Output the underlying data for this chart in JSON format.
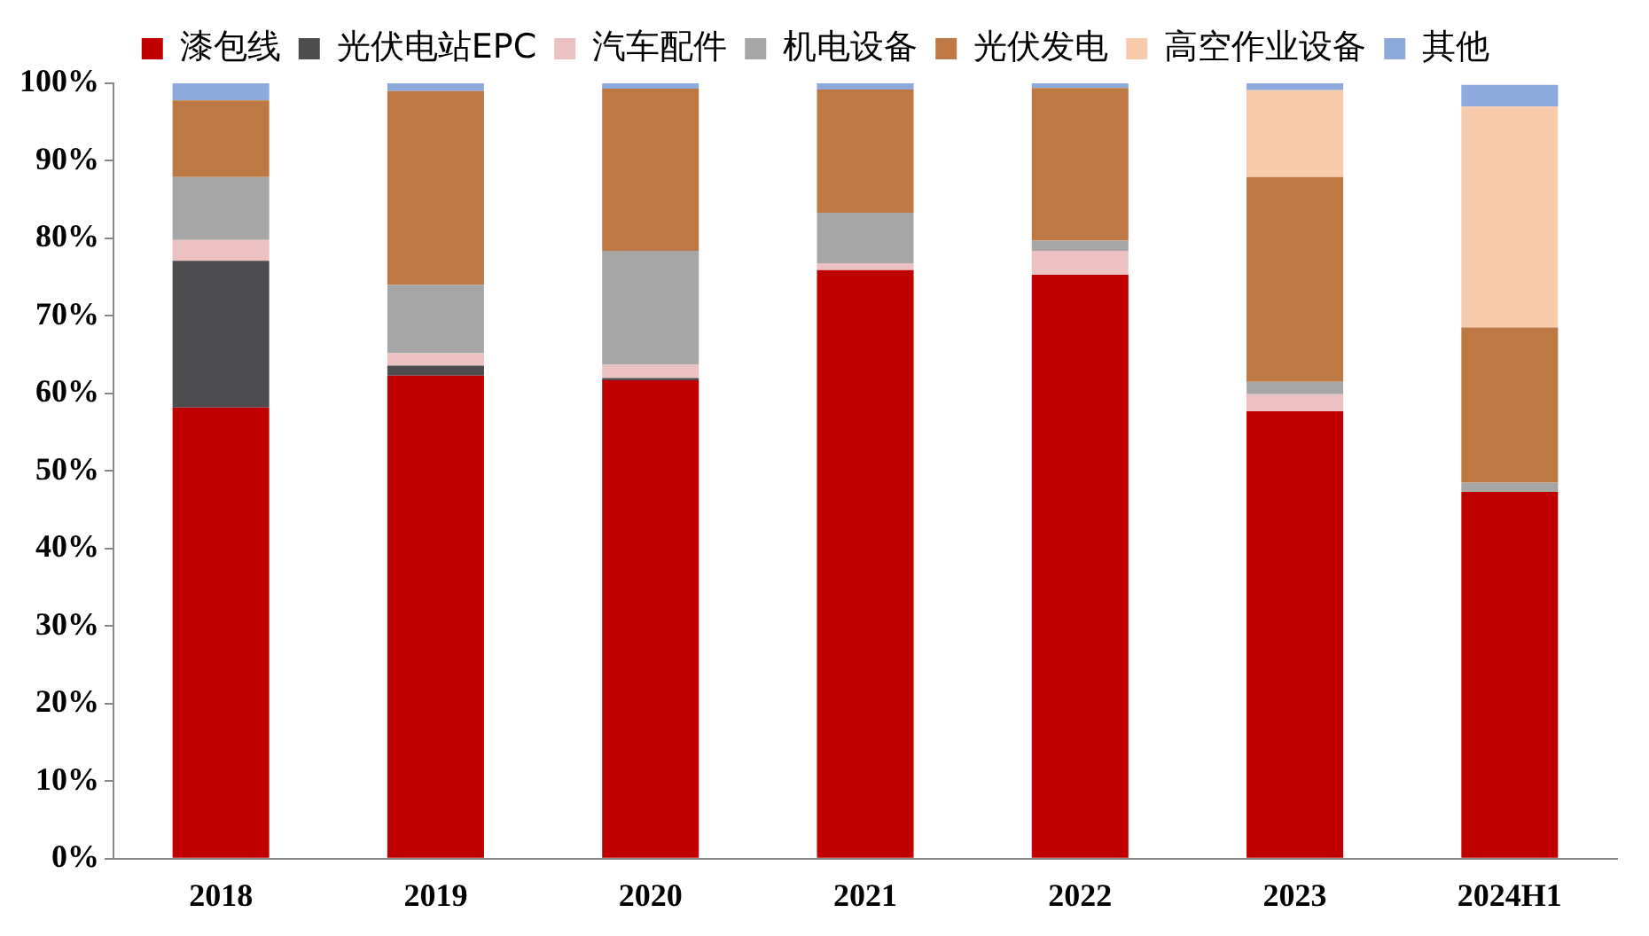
{
  "chart_data": {
    "type": "bar",
    "stacked": true,
    "legend": "top",
    "grid": false,
    "categories": [
      "2018",
      "2019",
      "2020",
      "2021",
      "2022",
      "2023",
      "2024H1"
    ],
    "series": [
      {
        "name": "漆包线",
        "color": "#c00000",
        "values": [
          58.2,
          62.3,
          61.7,
          75.9,
          75.3,
          57.7,
          47.3
        ]
      },
      {
        "name": "光伏电站EPC",
        "color": "#4d4d4f",
        "values": [
          18.9,
          1.3,
          0.3,
          0,
          0,
          0,
          0
        ]
      },
      {
        "name": "汽车配件",
        "color": "#ebc1c1",
        "values": [
          2.7,
          1.6,
          1.7,
          0.9,
          3.1,
          2.2,
          null
        ]
      },
      {
        "name": "机电设备",
        "color": "#a6a6a6",
        "values": [
          8.1,
          8.8,
          14.7,
          6.5,
          1.3,
          1.6,
          1.2
        ]
      },
      {
        "name": "光伏发电",
        "color": "#bd7843",
        "values": [
          9.9,
          25.0,
          20.9,
          15.9,
          19.7,
          26.4,
          20.0
        ]
      },
      {
        "name": "高空作业设备",
        "color": "#f8cbad",
        "values": [
          0,
          0,
          0,
          0,
          0,
          11.2,
          28.5
        ]
      },
      {
        "name": "其他",
        "color": "#8eaadc",
        "values": [
          2.2,
          1.0,
          0.8,
          0.8,
          0.6,
          0.9,
          2.8
        ]
      }
    ],
    "ylim": [
      0,
      100
    ],
    "yticks": [
      {
        "value": 0,
        "label": "0%"
      },
      {
        "value": 10,
        "label": "10%"
      },
      {
        "value": 20,
        "label": "20%"
      },
      {
        "value": 30,
        "label": "30%"
      },
      {
        "value": 40,
        "label": "40%"
      },
      {
        "value": 50,
        "label": "50%"
      },
      {
        "value": 60,
        "label": "60%"
      },
      {
        "value": 70,
        "label": "70%"
      },
      {
        "value": 80,
        "label": "80%"
      },
      {
        "value": 90,
        "label": "90%"
      },
      {
        "value": 100,
        "label": "100%"
      }
    ]
  }
}
